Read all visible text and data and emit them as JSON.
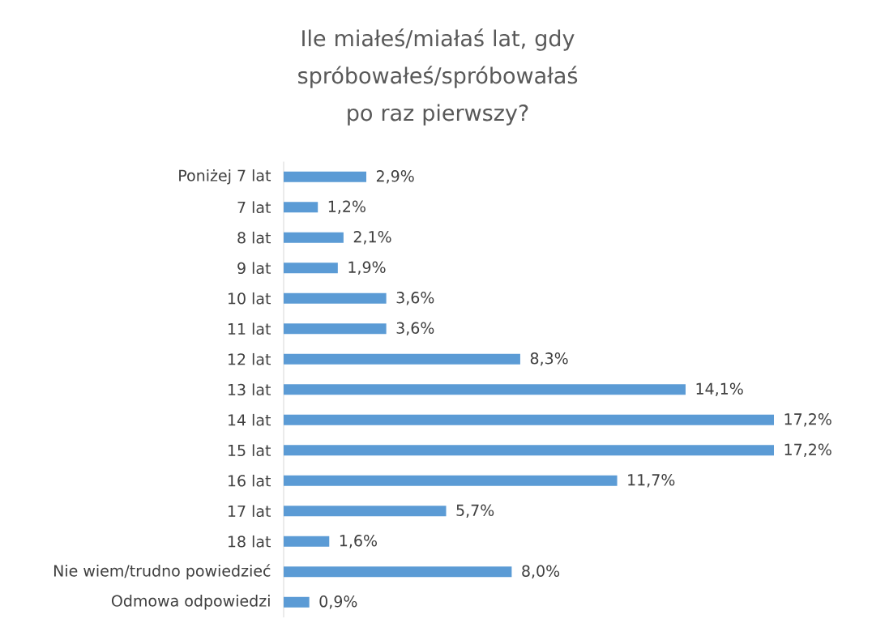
{
  "chart_data": {
    "type": "bar",
    "orientation": "horizontal",
    "title": "Ile miałeś/miałaś lat, gdy spróbowałeś/spróbowałaś po raz pierwszy?",
    "categories": [
      "Poniżej 7 lat",
      "7 lat",
      "8 lat",
      "9 lat",
      "10 lat",
      "11 lat",
      "12 lat",
      "13 lat",
      "14 lat",
      "15 lat",
      "16 lat",
      "17 lat",
      "18 lat",
      "Nie wiem/trudno powiedzieć",
      "Odmowa odpowiedzi"
    ],
    "values": [
      2.9,
      1.2,
      2.1,
      1.9,
      3.6,
      3.6,
      8.3,
      14.1,
      17.2,
      17.2,
      11.7,
      5.7,
      1.6,
      8.0,
      0.9
    ],
    "value_labels": [
      "2,9%",
      "1,2%",
      "2,1%",
      "1,9%",
      "3,6%",
      "3,6%",
      "8,3%",
      "14,1%",
      "17,2%",
      "17,2%",
      "11,7%",
      "5,7%",
      "1,6%",
      "8,0%",
      "0,9%"
    ],
    "color": "#5b9bd5"
  }
}
